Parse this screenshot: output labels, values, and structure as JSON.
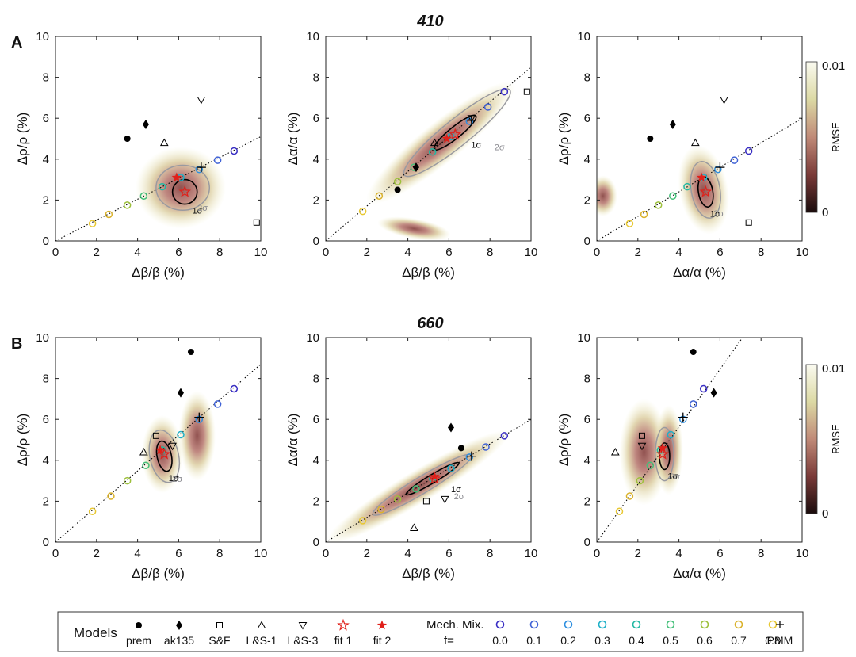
{
  "figure": {
    "row_titles": [
      "410",
      "660"
    ],
    "panel_labels": [
      "A",
      "B"
    ],
    "colorbar": {
      "label": "RMSE",
      "max_label": "0.01",
      "min_label": "0",
      "colors": [
        "#1a0c0c",
        "#7a3a38",
        "#c08a78",
        "#dcd9a4",
        "#fafaf0"
      ]
    },
    "sigma_labels": [
      "1σ",
      "2σ"
    ]
  },
  "legend": {
    "models_title": "Models",
    "models": [
      {
        "label": "prem",
        "marker": "circle-filled"
      },
      {
        "label": "ak135",
        "marker": "diamond-filled"
      },
      {
        "label": "S&F",
        "marker": "square-open"
      },
      {
        "label": "L&S-1",
        "marker": "triangle-up-open"
      },
      {
        "label": "L&S-3",
        "marker": "triangle-down-open"
      },
      {
        "label": "fit 1",
        "marker": "star-open-red"
      },
      {
        "label": "fit 2",
        "marker": "star-filled-red"
      }
    ],
    "mech_title": "Mech. Mix.",
    "f_label": "f=",
    "f_values": [
      "0.0",
      "0.1",
      "0.2",
      "0.3",
      "0.4",
      "0.5",
      "0.6",
      "0.7",
      "0.8"
    ],
    "f_colors": [
      "#3a2fc4",
      "#3f62d6",
      "#2e8fe0",
      "#1fb0c8",
      "#22b8a3",
      "#45c07a",
      "#9dc03c",
      "#dab22c",
      "#e8c832"
    ],
    "pmm_label": "PMM"
  },
  "chart_data": [
    {
      "type": "scatter",
      "panel": "410-1",
      "xlabel": "Δβ/β (%)",
      "ylabel": "Δρ/ρ (%)",
      "xlim": [
        0,
        10
      ],
      "ylim": [
        0,
        10
      ],
      "ticks": [
        0,
        2,
        4,
        6,
        8,
        10
      ],
      "points": {
        "prem": [
          3.5,
          5.0
        ],
        "ak135": [
          4.4,
          5.7
        ],
        "S&F": [
          9.8,
          0.9
        ],
        "L&S-1": [
          5.3,
          4.8
        ],
        "L&S-3": [
          7.1,
          6.9
        ],
        "fit 1": [
          6.3,
          2.4
        ],
        "fit 2": [
          5.9,
          3.1
        ],
        "PMM": [
          7.1,
          3.6
        ]
      },
      "mixing": [
        [
          8.7,
          4.4
        ],
        [
          7.9,
          3.95
        ],
        [
          7.0,
          3.5
        ],
        [
          6.1,
          3.1
        ],
        [
          5.2,
          2.65
        ],
        [
          4.3,
          2.2
        ],
        [
          3.5,
          1.75
        ],
        [
          2.6,
          1.3
        ],
        [
          1.8,
          0.85
        ]
      ],
      "line": [
        [
          0,
          0
        ],
        [
          10,
          5.1
        ]
      ],
      "rmse_blobs": [
        {
          "cx": 6.1,
          "cy": 2.6,
          "rx": 2.2,
          "ry": 2.0,
          "rot": 0
        }
      ],
      "sigma1": {
        "cx": 6.3,
        "cy": 2.4,
        "rx": 0.6,
        "ry": 0.6,
        "rot": 0
      },
      "sigma2": {
        "cx": 6.2,
        "cy": 2.6,
        "rx": 1.3,
        "ry": 1.1,
        "rot": 0
      }
    },
    {
      "type": "scatter",
      "panel": "410-2",
      "xlabel": "Δβ/β (%)",
      "ylabel": "Δα/α (%)",
      "xlim": [
        0,
        10
      ],
      "ylim": [
        0,
        10
      ],
      "ticks": [
        0,
        2,
        4,
        6,
        8,
        10
      ],
      "points": {
        "prem": [
          3.5,
          2.5
        ],
        "ak135": [
          4.4,
          3.6
        ],
        "S&F": [
          9.8,
          7.3
        ],
        "L&S-1": [
          5.3,
          4.8
        ],
        "L&S-3": [
          7.1,
          6.0
        ],
        "fit 1": [
          6.3,
          5.2
        ],
        "fit 2": [
          5.9,
          5.0
        ],
        "PMM": [
          7.1,
          5.9
        ]
      },
      "mixing": [
        [
          8.7,
          7.3
        ],
        [
          7.9,
          6.55
        ],
        [
          7.0,
          5.85
        ],
        [
          6.1,
          5.1
        ],
        [
          5.2,
          4.35
        ],
        [
          4.3,
          3.6
        ],
        [
          3.5,
          2.9
        ],
        [
          2.6,
          2.2
        ],
        [
          1.8,
          1.45
        ]
      ],
      "line": [
        [
          0,
          0
        ],
        [
          10,
          8.5
        ]
      ],
      "rmse_blobs": [
        {
          "cx": 5.6,
          "cy": 4.8,
          "rx": 4.6,
          "ry": 1.0,
          "rot": 39
        },
        {
          "cx": 4.3,
          "cy": 0.6,
          "rx": 1.8,
          "ry": 0.5,
          "rot": -10
        }
      ],
      "sigma1": {
        "cx": 6.3,
        "cy": 5.3,
        "rx": 1.3,
        "ry": 0.28,
        "rot": 39
      },
      "sigma2": {
        "cx": 6.4,
        "cy": 5.3,
        "rx": 3.3,
        "ry": 0.65,
        "rot": 39
      }
    },
    {
      "type": "scatter",
      "panel": "410-3",
      "xlabel": "Δα/α (%)",
      "ylabel": "Δρ/ρ (%)",
      "xlim": [
        0,
        10
      ],
      "ylim": [
        0,
        10
      ],
      "ticks": [
        0,
        2,
        4,
        6,
        8,
        10
      ],
      "points": {
        "prem": [
          2.6,
          5.0
        ],
        "ak135": [
          3.7,
          5.7
        ],
        "S&F": [
          7.4,
          0.9
        ],
        "L&S-1": [
          4.8,
          4.8
        ],
        "L&S-3": [
          6.2,
          6.9
        ],
        "fit 1": [
          5.3,
          2.4
        ],
        "fit 2": [
          5.1,
          3.1
        ],
        "PMM": [
          6.0,
          3.6
        ]
      },
      "mixing": [
        [
          7.4,
          4.4
        ],
        [
          6.7,
          3.95
        ],
        [
          5.9,
          3.5
        ],
        [
          5.2,
          3.1
        ],
        [
          4.4,
          2.65
        ],
        [
          3.7,
          2.2
        ],
        [
          3.0,
          1.75
        ],
        [
          2.3,
          1.3
        ],
        [
          1.6,
          0.85
        ]
      ],
      "line": [
        [
          0,
          0
        ],
        [
          10,
          6.0
        ]
      ],
      "rmse_blobs": [
        {
          "cx": 5.2,
          "cy": 2.5,
          "rx": 1.2,
          "ry": 2.2,
          "rot": 10
        },
        {
          "cx": 0.3,
          "cy": 2.2,
          "rx": 0.7,
          "ry": 1.0,
          "rot": 0
        }
      ],
      "sigma1": {
        "cx": 5.3,
        "cy": 2.4,
        "rx": 0.35,
        "ry": 0.75,
        "rot": 10
      },
      "sigma2": {
        "cx": 5.3,
        "cy": 2.5,
        "rx": 0.7,
        "ry": 1.4,
        "rot": 10
      }
    },
    {
      "type": "scatter",
      "panel": "660-1",
      "xlabel": "Δβ/β (%)",
      "ylabel": "Δρ/ρ (%)",
      "xlim": [
        0,
        10
      ],
      "ylim": [
        0,
        10
      ],
      "ticks": [
        0,
        2,
        4,
        6,
        8,
        10
      ],
      "points": {
        "prem": [
          6.6,
          9.3
        ],
        "ak135": [
          6.1,
          7.3
        ],
        "S&F": [
          4.9,
          5.2
        ],
        "L&S-1": [
          4.3,
          4.4
        ],
        "L&S-3": [
          5.7,
          4.7
        ],
        "fit 1": [
          5.3,
          4.3
        ],
        "fit 2": [
          5.1,
          4.5
        ],
        "PMM": [
          7.0,
          6.1
        ]
      },
      "mixing": [
        [
          8.7,
          7.5
        ],
        [
          7.9,
          6.75
        ],
        [
          7.0,
          6.0
        ],
        [
          6.1,
          5.25
        ],
        [
          5.2,
          4.5
        ],
        [
          4.4,
          3.75
        ],
        [
          3.5,
          3.0
        ],
        [
          2.7,
          2.25
        ],
        [
          1.8,
          1.5
        ]
      ],
      "line": [
        [
          0,
          0
        ],
        [
          10,
          8.7
        ]
      ],
      "rmse_blobs": [
        {
          "cx": 5.2,
          "cy": 4.3,
          "rx": 1.0,
          "ry": 1.9,
          "rot": 0
        },
        {
          "cx": 6.9,
          "cy": 5.2,
          "rx": 0.9,
          "ry": 2.2,
          "rot": 0
        }
      ],
      "sigma1": {
        "cx": 5.3,
        "cy": 4.2,
        "rx": 0.35,
        "ry": 0.75,
        "rot": 12
      },
      "sigma2": {
        "cx": 5.3,
        "cy": 4.2,
        "rx": 0.7,
        "ry": 1.3,
        "rot": 12
      }
    },
    {
      "type": "scatter",
      "panel": "660-2",
      "xlabel": "Δβ/β (%)",
      "ylabel": "Δα/α (%)",
      "xlim": [
        0,
        10
      ],
      "ylim": [
        0,
        10
      ],
      "ticks": [
        0,
        2,
        4,
        6,
        8,
        10
      ],
      "points": {
        "prem": [
          6.6,
          4.6
        ],
        "ak135": [
          6.1,
          5.6
        ],
        "S&F": [
          4.9,
          2.0
        ],
        "L&S-1": [
          4.3,
          0.7
        ],
        "L&S-3": [
          5.8,
          2.1
        ],
        "fit 1": [
          5.3,
          3.1
        ],
        "fit 2": [
          5.3,
          3.2
        ],
        "PMM": [
          7.1,
          4.2
        ]
      },
      "mixing": [
        [
          8.7,
          5.2
        ],
        [
          7.8,
          4.65
        ],
        [
          7.0,
          4.15
        ],
        [
          6.1,
          3.6
        ],
        [
          5.2,
          3.1
        ],
        [
          4.4,
          2.6
        ],
        [
          3.5,
          2.1
        ],
        [
          2.7,
          1.6
        ],
        [
          1.8,
          1.05
        ]
      ],
      "line": [
        [
          0,
          0
        ],
        [
          10,
          6.0
        ]
      ],
      "rmse_blobs": [
        {
          "cx": 4.5,
          "cy": 2.7,
          "rx": 5.2,
          "ry": 0.8,
          "rot": 31
        }
      ],
      "sigma1": {
        "cx": 5.2,
        "cy": 3.1,
        "rx": 1.5,
        "ry": 0.2,
        "rot": 31
      },
      "sigma2": {
        "cx": 4.7,
        "cy": 2.8,
        "rx": 2.8,
        "ry": 0.4,
        "rot": 31
      }
    },
    {
      "type": "scatter",
      "panel": "660-3",
      "xlabel": "Δα/α (%)",
      "ylabel": "Δρ/ρ (%)",
      "xlim": [
        0,
        10
      ],
      "ylim": [
        0,
        10
      ],
      "ticks": [
        0,
        2,
        4,
        6,
        8,
        10
      ],
      "points": {
        "prem": [
          4.7,
          9.3
        ],
        "ak135": [
          5.7,
          7.3
        ],
        "S&F": [
          2.2,
          5.2
        ],
        "L&S-1": [
          0.9,
          4.4
        ],
        "L&S-3": [
          2.2,
          4.7
        ],
        "fit 1": [
          3.2,
          4.3
        ],
        "fit 2": [
          3.2,
          4.6
        ],
        "PMM": [
          4.2,
          6.1
        ]
      },
      "mixing": [
        [
          5.2,
          7.5
        ],
        [
          4.7,
          6.75
        ],
        [
          4.2,
          6.0
        ],
        [
          3.6,
          5.25
        ],
        [
          3.1,
          4.5
        ],
        [
          2.6,
          3.75
        ],
        [
          2.1,
          3.0
        ],
        [
          1.6,
          2.25
        ],
        [
          1.1,
          1.5
        ]
      ],
      "line": [
        [
          0,
          0
        ],
        [
          7.1,
          10
        ]
      ],
      "rmse_blobs": [
        {
          "cx": 2.3,
          "cy": 4.4,
          "rx": 1.2,
          "ry": 2.6,
          "rot": 0
        },
        {
          "cx": 3.5,
          "cy": 4.5,
          "rx": 0.7,
          "ry": 2.2,
          "rot": 0
        }
      ],
      "sigma1": {
        "cx": 3.3,
        "cy": 4.2,
        "rx": 0.25,
        "ry": 0.65,
        "rot": 0
      },
      "sigma2": {
        "cx": 3.3,
        "cy": 4.3,
        "rx": 0.45,
        "ry": 1.3,
        "rot": 0
      }
    }
  ]
}
